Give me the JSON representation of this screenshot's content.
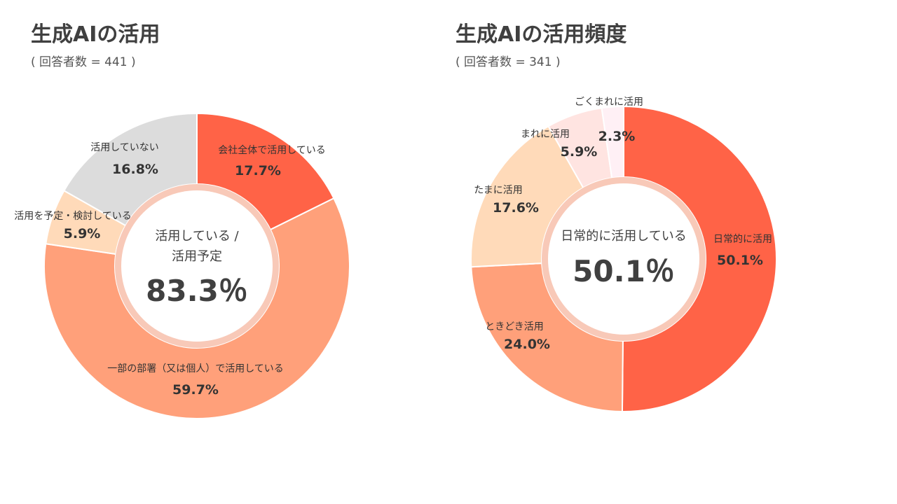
{
  "chart_data": [
    {
      "type": "pie",
      "title": "生成AIの活用",
      "subtitle": "( 回答者数 = 441 )",
      "center": {
        "line1": "活用している /",
        "line2": "活用予定",
        "value": "83.3％"
      },
      "slices": [
        {
          "label": "会社全体で活用している",
          "value": 17.7,
          "display": "17.7%",
          "color": "#FF6347"
        },
        {
          "label": "一部の部署（又は個人）で活用している",
          "value": 59.7,
          "display": "59.7%",
          "color": "#FFA07A"
        },
        {
          "label": "活用を予定・検討している",
          "value": 5.9,
          "display": "5.9%",
          "color": "#FFDAB9"
        },
        {
          "label": "活用していない",
          "value": 16.8,
          "display": "16.8%",
          "color": "#DCDCDC"
        }
      ]
    },
    {
      "type": "pie",
      "title": "生成AIの活用頻度",
      "subtitle": "( 回答者数 = 341 )",
      "center": {
        "line1": "日常的に活用している",
        "line2": "",
        "value": "50.1％"
      },
      "slices": [
        {
          "label": "日常的に活用",
          "value": 50.1,
          "display": "50.1%",
          "color": "#FF6347"
        },
        {
          "label": "ときどき活用",
          "value": 24.0,
          "display": "24.0%",
          "color": "#FFA07A"
        },
        {
          "label": "たまに活用",
          "value": 17.6,
          "display": "17.6%",
          "color": "#FFDAB9"
        },
        {
          "label": "まれに活用",
          "value": 5.9,
          "display": "5.9%",
          "color": "#FFE4E1"
        },
        {
          "label": "ごくまれに活用",
          "value": 2.3,
          "display": "2.3%",
          "color": "#FFF0F5"
        }
      ]
    }
  ]
}
